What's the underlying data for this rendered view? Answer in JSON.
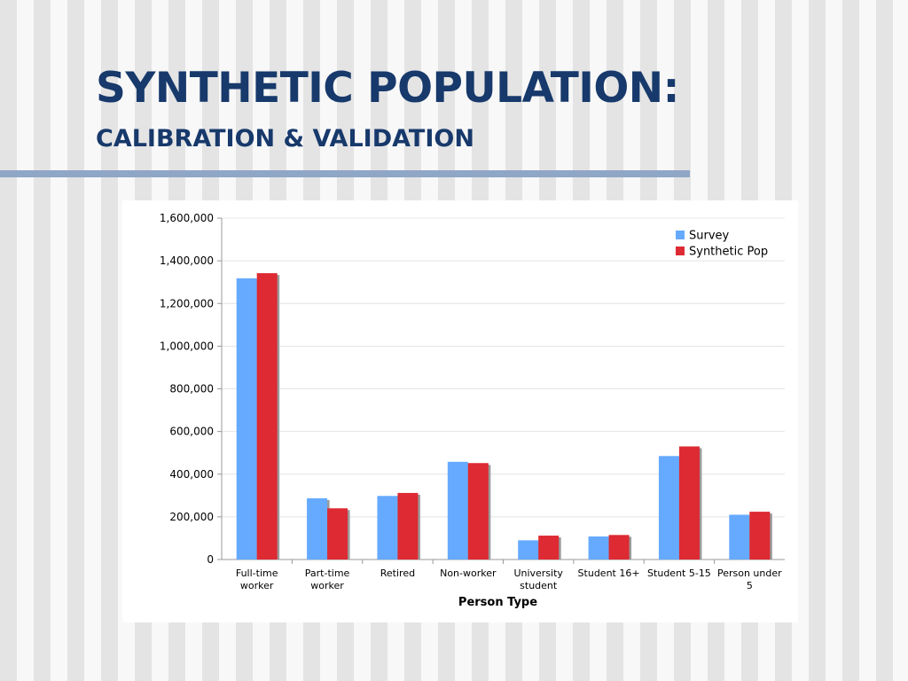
{
  "slide": {
    "title": "SYNTHETIC POPULATION:",
    "subtitle": "CALIBRATION & VALIDATION"
  },
  "colors": {
    "title": "#17396b",
    "rule": "#8fa6c6",
    "survey": "#66aaff",
    "synthetic": "#dd2a33"
  },
  "chart_data": {
    "type": "bar",
    "categories": [
      [
        "Full-time",
        "worker"
      ],
      [
        "Part-time",
        "worker"
      ],
      [
        "Retired"
      ],
      [
        "Non-worker"
      ],
      [
        "University",
        "student"
      ],
      [
        "Student 16+"
      ],
      [
        "Student 5-15"
      ],
      [
        "Person under",
        "5"
      ]
    ],
    "series": [
      {
        "name": "Survey",
        "color": "#66aaff",
        "values": [
          1318000,
          287000,
          298000,
          458000,
          90000,
          108000,
          485000,
          210000
        ]
      },
      {
        "name": "Synthetic Pop",
        "color": "#dd2a33",
        "values": [
          1342000,
          240000,
          312000,
          452000,
          112000,
          115000,
          530000,
          224000
        ]
      }
    ],
    "xlabel": "Person Type",
    "ylabel": "",
    "ylim": [
      0,
      1600000
    ],
    "yticks": [
      "0",
      "200,000",
      "400,000",
      "600,000",
      "800,000",
      "1,000,000",
      "1,200,000",
      "1,400,000",
      "1,600,000"
    ],
    "grid": true,
    "legend": "top-right"
  }
}
